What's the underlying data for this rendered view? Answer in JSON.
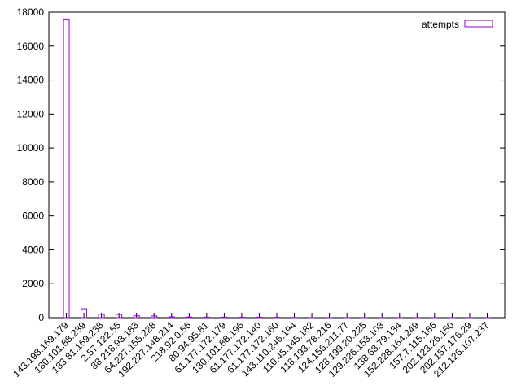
{
  "chart_data": {
    "type": "bar",
    "categories": [
      "143.198.169.179",
      "180.101.88.239",
      "183.81.169.238",
      "2.57.122.55",
      "88.218.93.183",
      "64.227.155.228",
      "192.227.148.214",
      "218.92.0.56",
      "80.94.95.81",
      "61.177.172.179",
      "180.101.88.196",
      "61.177.172.140",
      "61.177.172.160",
      "143.110.246.194",
      "110.45.145.182",
      "118.193.78.216",
      "124.156.211.77",
      "128.199.20.225",
      "129.226.153.103",
      "138.68.79.134",
      "152.228.164.249",
      "157.7.115.186",
      "202.123.26.150",
      "202.157.176.29",
      "212.126.107.237"
    ],
    "series": [
      {
        "name": "attempts",
        "color": "#9400d3",
        "values": [
          17600,
          520,
          200,
          190,
          110,
          100,
          50,
          40,
          30,
          30,
          25,
          25,
          20,
          10,
          5,
          5,
          5,
          5,
          5,
          5,
          5,
          5,
          5,
          5,
          5
        ]
      }
    ],
    "ylim": [
      0,
      18000
    ],
    "yticks": [
      0,
      2000,
      4000,
      6000,
      8000,
      10000,
      12000,
      14000,
      16000,
      18000
    ],
    "legend": "top-right"
  }
}
